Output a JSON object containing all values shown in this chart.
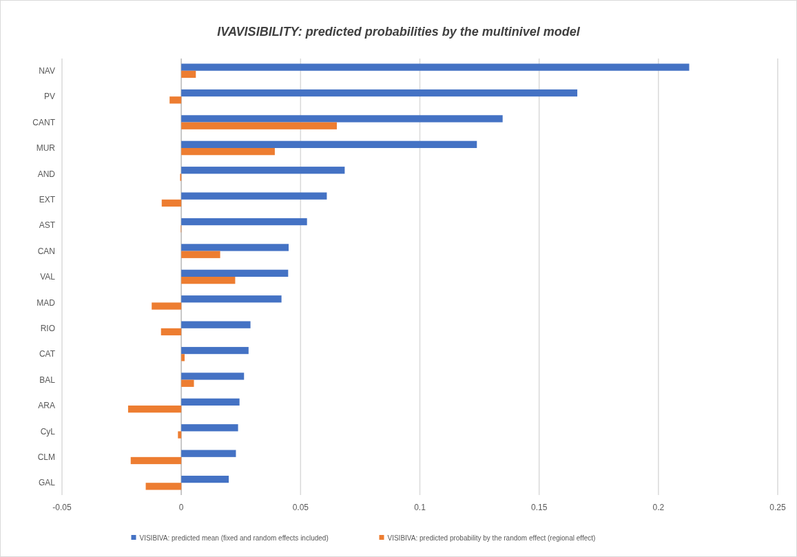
{
  "chart_data": {
    "type": "bar",
    "orientation": "horizontal",
    "title": "IVAVISIBILITY: predicted probabilities by the multinivel model",
    "categories": [
      "NAV",
      "PV",
      "CANT",
      "MUR",
      "AND",
      "EXT",
      "AST",
      "CAN",
      "VAL",
      "MAD",
      "RIO",
      "CAT",
      "BAL",
      "ARA",
      "CyL",
      "CLM",
      "GAL"
    ],
    "series": [
      {
        "name": "VISIBIVA: predicted mean (fixed and random effects included)",
        "color": "#4472c4",
        "values": [
          0.2129,
          0.166,
          0.1347,
          0.1239,
          0.0685,
          0.061,
          0.0527,
          0.045,
          0.0448,
          0.042,
          0.029,
          0.0282,
          0.0263,
          0.0244,
          0.0238,
          0.0229,
          0.0199
        ]
      },
      {
        "name": "VISIBIVA: predicted probability by the random effect (regional effect)",
        "color": "#ed7d31",
        "values": [
          0.0061,
          -0.0049,
          0.0652,
          0.0392,
          -0.0005,
          -0.0082,
          -0.0002,
          0.0163,
          0.0226,
          -0.0124,
          -0.0085,
          0.0014,
          0.0053,
          -0.0223,
          -0.0014,
          -0.0212,
          -0.0149
        ]
      }
    ],
    "xlim": [
      -0.05,
      0.25
    ],
    "xticks": [
      -0.05,
      0,
      0.05,
      0.1,
      0.15,
      0.2,
      0.25
    ],
    "grid": "x",
    "legend": "bottom"
  }
}
